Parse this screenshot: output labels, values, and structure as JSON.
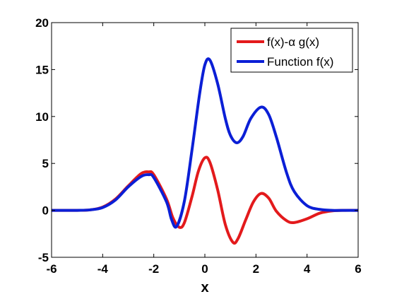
{
  "chart_data": {
    "type": "line",
    "xlabel": "x",
    "ylabel": "",
    "xlim": [
      -6,
      6
    ],
    "ylim": [
      -5,
      20
    ],
    "xticks": [
      -6,
      -4,
      -2,
      0,
      2,
      4,
      6
    ],
    "yticks": [
      -5,
      0,
      5,
      10,
      15,
      20
    ],
    "grid": false,
    "legend_position": "top-right",
    "series": [
      {
        "name": "f(x)-α g(x)",
        "color": "#e31a1c",
        "x": [
          -6,
          -5,
          -4.5,
          -4,
          -3.5,
          -3,
          -2.5,
          -2.2,
          -2,
          -1.5,
          -1.25,
          -1,
          -0.8,
          -0.5,
          -0.25,
          0,
          0.2,
          0.5,
          0.8,
          1.1,
          1.3,
          1.6,
          1.9,
          2.2,
          2.5,
          2.8,
          3.2,
          3.5,
          4,
          4.5,
          5,
          5.5,
          6
        ],
        "y": [
          0,
          0,
          0.05,
          0.35,
          1.2,
          2.6,
          3.9,
          4.1,
          3.8,
          1.2,
          -0.8,
          -1.8,
          -1.3,
          1.5,
          4.2,
          5.6,
          5.1,
          2.2,
          -1.5,
          -3.4,
          -3.0,
          -1.0,
          0.9,
          1.8,
          1.3,
          -0.1,
          -1.1,
          -1.3,
          -0.9,
          -0.3,
          -0.05,
          0,
          0
        ]
      },
      {
        "name": "Function f(x)",
        "color": "#0b1fd6",
        "x": [
          -6,
          -5,
          -4.5,
          -4,
          -3.5,
          -3,
          -2.5,
          -2.2,
          -2,
          -1.5,
          -1.3,
          -1.1,
          -0.8,
          -0.5,
          -0.2,
          0,
          0.2,
          0.5,
          0.8,
          1.0,
          1.25,
          1.5,
          1.8,
          2.2,
          2.5,
          2.8,
          3.2,
          3.5,
          4,
          4.5,
          5,
          5.5,
          6
        ],
        "y": [
          0,
          0,
          0.05,
          0.3,
          1.1,
          2.5,
          3.6,
          3.8,
          3.5,
          0.9,
          -1.0,
          -1.7,
          1.0,
          6.5,
          12.5,
          15.5,
          16.0,
          13.5,
          9.8,
          8.0,
          7.2,
          7.9,
          9.8,
          11.0,
          10.2,
          7.8,
          4.0,
          2.0,
          0.5,
          0.1,
          0,
          0,
          0
        ]
      }
    ]
  }
}
